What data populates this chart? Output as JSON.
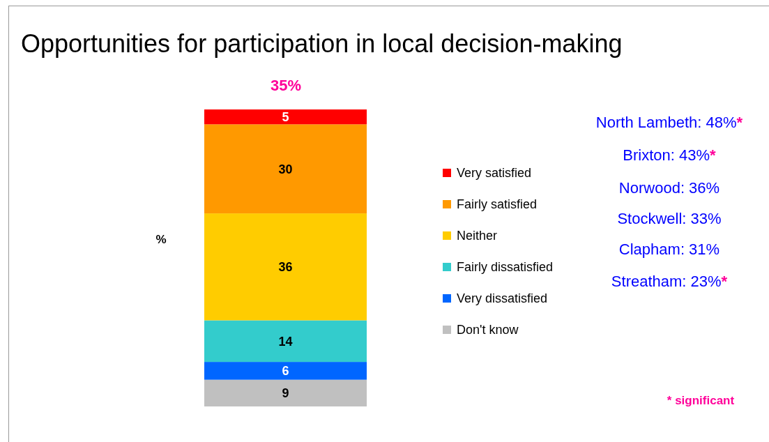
{
  "chart_data": {
    "type": "bar",
    "title": "Opportunities for participation in local decision-making",
    "ylabel": "%",
    "categories": [
      null
    ],
    "stacked": true,
    "ylim": [
      0,
      100
    ],
    "data_labels": true,
    "legend": "right",
    "series": [
      {
        "name": "Don't know",
        "color": "#c0c0c0",
        "values": [
          9
        ]
      },
      {
        "name": "Very dissatisfied",
        "color": "#0066ff",
        "values": [
          6
        ]
      },
      {
        "name": "Fairly dissatisfied",
        "color": "#33cccc",
        "values": [
          14
        ]
      },
      {
        "name": "Neither",
        "color": "#ffcc00",
        "values": [
          36
        ]
      },
      {
        "name": "Fairly satisfied",
        "color": "#ff9900",
        "values": [
          30
        ]
      },
      {
        "name": "Very satisfied",
        "color": "#ff0000",
        "values": [
          5
        ]
      }
    ],
    "annotations": [
      "35%",
      "North Lambeth: 48%*",
      "Brixton: 43%*",
      "Norwood: 36%",
      "Stockwell: 33%",
      "Clapham: 31%",
      "Streatham: 23%*",
      "* significant"
    ]
  }
}
